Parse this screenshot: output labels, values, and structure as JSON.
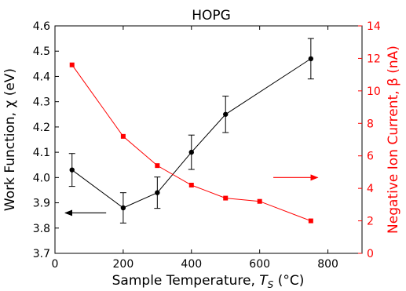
{
  "chart_data": {
    "type": "line",
    "title": "HOPG",
    "xlabel": "Sample Temperature, T_S (°C)",
    "xlabel_parts": {
      "prefix": "Sample Temperature, ",
      "var": "T",
      "sub": "S",
      "suffix": " (°C)"
    },
    "ylabel_left": "Work Function, χ (eV)",
    "ylabel_right": "Negative Ion Current, β (nA)",
    "xlim": [
      0,
      900
    ],
    "ylim_left": [
      3.7,
      4.6
    ],
    "ylim_right": [
      0,
      14
    ],
    "x_ticks": [
      0,
      200,
      400,
      600,
      800
    ],
    "x_tick_labels": [
      "0",
      "200",
      "400",
      "600",
      "800"
    ],
    "y_left_ticks": [
      3.7,
      3.8,
      3.9,
      4.0,
      4.1,
      4.2,
      4.3,
      4.4,
      4.5,
      4.6
    ],
    "y_left_tick_labels": [
      "3.7",
      "3.8",
      "3.9",
      "4.0",
      "4.1",
      "4.2",
      "4.3",
      "4.4",
      "4.5",
      "4.6"
    ],
    "y_right_ticks": [
      0,
      2,
      4,
      6,
      8,
      10,
      12,
      14
    ],
    "y_right_tick_labels": [
      "0",
      "2",
      "4",
      "6",
      "8",
      "10",
      "12",
      "14"
    ],
    "grid": false,
    "series": [
      {
        "axis": "left",
        "color": "#000000",
        "marker": "circle",
        "x": [
          50,
          200,
          300,
          400,
          500,
          750
        ],
        "y": [
          4.03,
          3.88,
          3.94,
          4.1,
          4.25,
          4.47
        ],
        "yerr": [
          0.065,
          0.06,
          0.062,
          0.068,
          0.072,
          0.08
        ]
      },
      {
        "axis": "right",
        "color": "#ff0000",
        "marker": "square",
        "x": [
          50,
          200,
          300,
          400,
          500,
          600,
          750
        ],
        "y": [
          11.6,
          7.2,
          5.4,
          4.2,
          3.4,
          3.2,
          2.0
        ]
      }
    ],
    "annotations": [
      {
        "type": "arrow",
        "direction": "left",
        "color": "#000000",
        "from": [
          150,
          3.86
        ],
        "to": [
          30,
          3.86
        ]
      },
      {
        "type": "arrow",
        "direction": "right",
        "color": "#ff0000",
        "from": [
          640,
          4.0
        ],
        "to": [
          770,
          4.0
        ]
      }
    ]
  }
}
